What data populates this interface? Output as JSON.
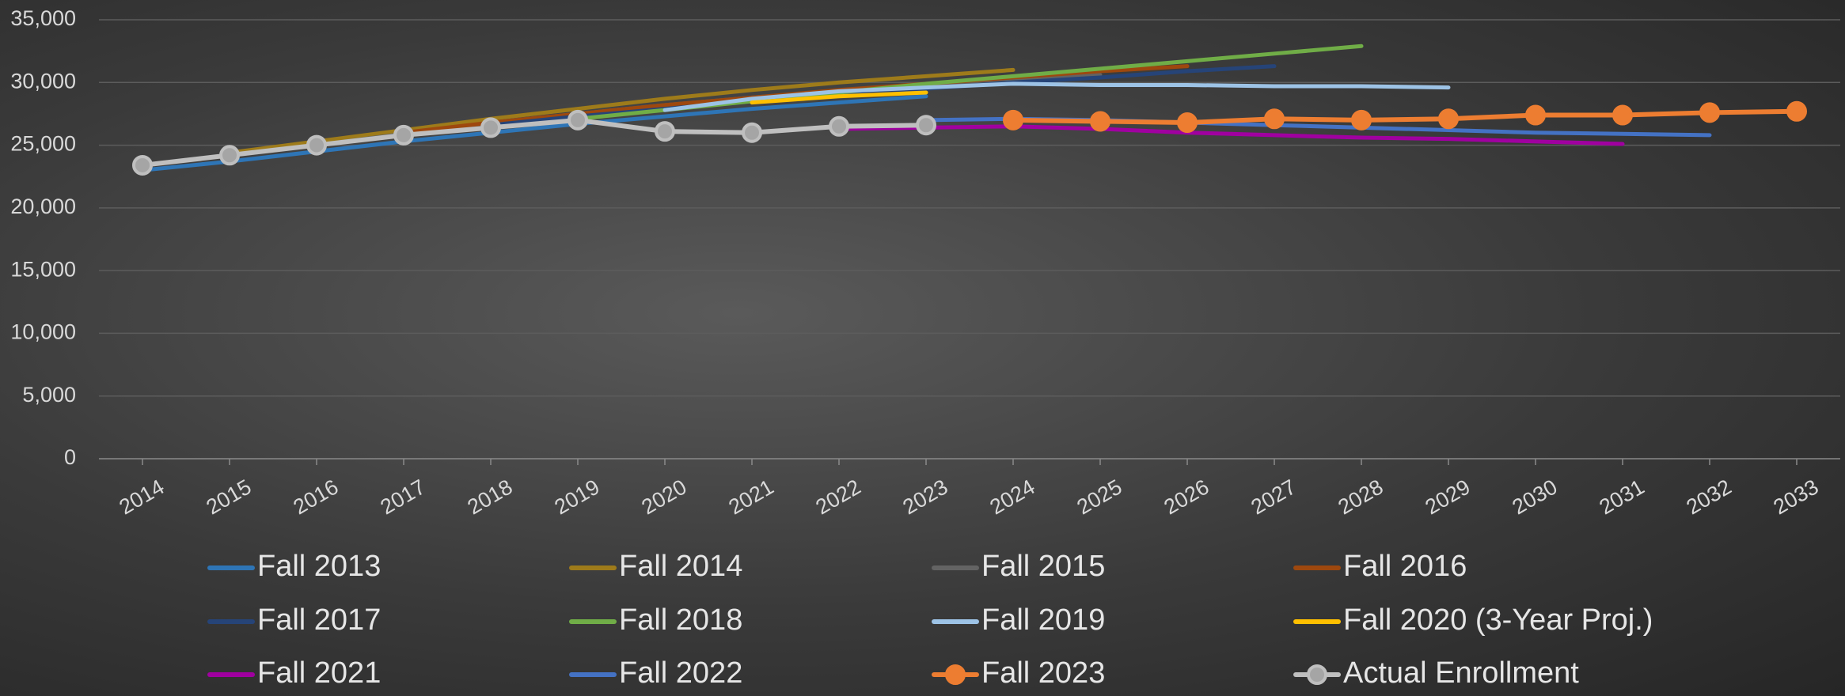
{
  "chart_data": {
    "type": "line",
    "categories": [
      "2014",
      "2015",
      "2016",
      "2017",
      "2018",
      "2019",
      "2020",
      "2021",
      "2022",
      "2023",
      "2024",
      "2025",
      "2026",
      "2027",
      "2028",
      "2029",
      "2030",
      "2031",
      "2032",
      "2033"
    ],
    "ylim": [
      0,
      35000
    ],
    "yticks": [
      0,
      {
        "value": 5000,
        "label": "5,000"
      },
      {
        "value": 10000,
        "label": "10,000"
      },
      {
        "value": 15000,
        "label": "15,000"
      },
      {
        "value": 20000,
        "label": "20,000"
      },
      {
        "value": 25000,
        "label": "25,000"
      },
      {
        "value": 30000,
        "label": "30,000"
      },
      {
        "value": 35000,
        "label": "35,000"
      }
    ],
    "grid": true,
    "legend": "bottom",
    "series": [
      {
        "name": "Fall 2013",
        "color": "#2e75b6",
        "values": [
          23000,
          23700,
          24500,
          25300,
          26000,
          26700,
          27300,
          27900,
          28400,
          28900,
          null,
          null,
          null,
          null,
          null,
          null,
          null,
          null,
          null,
          null
        ]
      },
      {
        "name": "Fall 2014",
        "color": "#9e7b1a",
        "values": [
          null,
          24400,
          25300,
          26200,
          27100,
          27900,
          28700,
          29400,
          30000,
          30500,
          31000,
          null,
          null,
          null,
          null,
          null,
          null,
          null,
          null,
          null
        ]
      },
      {
        "name": "Fall 2015",
        "color": "#636363",
        "values": [
          null,
          null,
          25000,
          25900,
          26800,
          27500,
          28200,
          28800,
          29300,
          29800,
          30200,
          30600,
          null,
          null,
          null,
          null,
          null,
          null,
          null,
          null
        ]
      },
      {
        "name": "Fall 2016",
        "color": "#9e480e",
        "values": [
          null,
          null,
          null,
          26000,
          26800,
          27500,
          28200,
          28800,
          29400,
          29900,
          30400,
          30900,
          31300,
          null,
          null,
          null,
          null,
          null,
          null,
          null
        ]
      },
      {
        "name": "Fall 2017",
        "color": "#264478",
        "values": [
          null,
          null,
          null,
          null,
          26600,
          27300,
          27900,
          28500,
          29000,
          29500,
          30000,
          30400,
          30900,
          31300,
          null,
          null,
          null,
          null,
          null,
          null
        ]
      },
      {
        "name": "Fall 2018",
        "color": "#70ad47",
        "values": [
          null,
          null,
          null,
          null,
          null,
          27100,
          27800,
          28500,
          29200,
          29900,
          30500,
          31100,
          31700,
          32300,
          32900,
          null,
          null,
          null,
          null,
          null
        ]
      },
      {
        "name": "Fall 2019",
        "color": "#9dc3e6",
        "values": [
          null,
          null,
          null,
          null,
          null,
          null,
          27800,
          28700,
          29300,
          29600,
          29900,
          29800,
          29800,
          29700,
          29700,
          29600,
          null,
          null,
          null,
          null
        ]
      },
      {
        "name": "Fall 2020 (3-Year Proj.)",
        "color": "#ffc000",
        "values": [
          null,
          null,
          null,
          null,
          null,
          null,
          null,
          28400,
          28900,
          29200,
          null,
          null,
          null,
          null,
          null,
          null,
          null,
          null,
          null,
          null
        ]
      },
      {
        "name": "Fall 2021",
        "color": "#a000a0",
        "values": [
          null,
          null,
          null,
          null,
          null,
          null,
          null,
          null,
          26300,
          26400,
          26500,
          26300,
          26000,
          25800,
          25600,
          25500,
          25300,
          25100,
          null,
          null
        ]
      },
      {
        "name": "Fall 2022",
        "color": "#4472c4",
        "values": [
          null,
          null,
          null,
          null,
          null,
          null,
          null,
          null,
          null,
          27000,
          27100,
          27000,
          26800,
          26600,
          26400,
          26200,
          26000,
          25900,
          25800,
          null
        ]
      },
      {
        "name": "Fall 2023",
        "color": "#ed7d31",
        "marker": true,
        "values": [
          null,
          null,
          null,
          null,
          null,
          null,
          null,
          null,
          null,
          null,
          27000,
          26900,
          26800,
          27100,
          27000,
          27100,
          27400,
          27400,
          27600,
          27700
        ]
      },
      {
        "name": "Actual Enrollment",
        "color": "#bfbfbf",
        "marker": true,
        "marker_fill": "#a5a5a5",
        "values": [
          23400,
          24200,
          25000,
          25800,
          26400,
          27000,
          26100,
          26000,
          26500,
          26600,
          null,
          null,
          null,
          null,
          null,
          null,
          null,
          null,
          null,
          null
        ]
      }
    ]
  }
}
